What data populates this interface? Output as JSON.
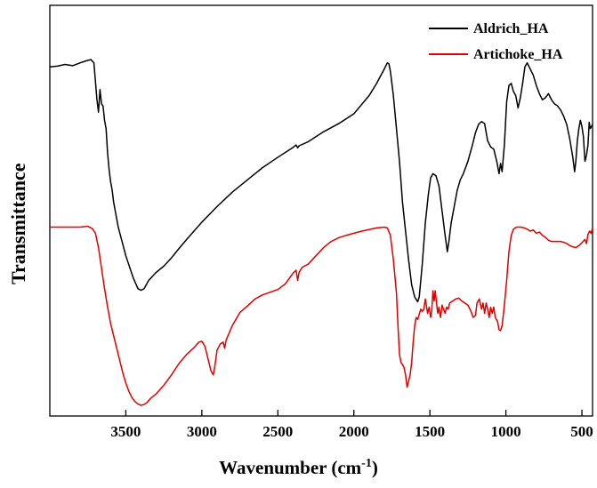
{
  "chart_data": {
    "type": "line",
    "title": "",
    "xlabel": "Wavenumber (cm",
    "xlabel_sup": "-1",
    "xlabel_suffix": ")",
    "ylabel": "Transmittance",
    "xlim": [
      4000,
      430
    ],
    "ylim": [
      0,
      100
    ],
    "x_reversed": true,
    "xticks": [
      {
        "value": 3500,
        "label": "3500"
      },
      {
        "value": 3000,
        "label": "3000"
      },
      {
        "value": 2500,
        "label": "2500"
      },
      {
        "value": 2000,
        "label": "2000"
      },
      {
        "value": 1500,
        "label": "1500"
      },
      {
        "value": 1000,
        "label": "1000"
      },
      {
        "value": 500,
        "label": "500"
      }
    ],
    "grid": false,
    "legend_position": "top-right",
    "series": [
      {
        "name": "Aldrich_HA",
        "color": "#000000",
        "points": [
          [
            4000,
            85.0
          ],
          [
            3950,
            85.2
          ],
          [
            3900,
            85.6
          ],
          [
            3850,
            85.3
          ],
          [
            3800,
            86.0
          ],
          [
            3760,
            86.5
          ],
          [
            3730,
            86.8
          ],
          [
            3710,
            86.0
          ],
          [
            3690,
            77.0
          ],
          [
            3680,
            74.0
          ],
          [
            3670,
            79.5
          ],
          [
            3660,
            76.0
          ],
          [
            3650,
            75.5
          ],
          [
            3640,
            72.0
          ],
          [
            3630,
            70.0
          ],
          [
            3620,
            64.0
          ],
          [
            3610,
            60.0
          ],
          [
            3600,
            57.0
          ],
          [
            3590,
            55.0
          ],
          [
            3580,
            52.0
          ],
          [
            3550,
            46.0
          ],
          [
            3500,
            39.0
          ],
          [
            3450,
            33.5
          ],
          [
            3420,
            31.0
          ],
          [
            3400,
            30.6
          ],
          [
            3380,
            31.0
          ],
          [
            3350,
            33.0
          ],
          [
            3300,
            35.0
          ],
          [
            3250,
            36.5
          ],
          [
            3200,
            38.5
          ],
          [
            3150,
            40.8
          ],
          [
            3100,
            43.0
          ],
          [
            3000,
            47.2
          ],
          [
            2900,
            51.0
          ],
          [
            2800,
            54.5
          ],
          [
            2700,
            57.5
          ],
          [
            2600,
            60.5
          ],
          [
            2500,
            63.0
          ],
          [
            2400,
            65.4
          ],
          [
            2380,
            66.0
          ],
          [
            2370,
            65.3
          ],
          [
            2360,
            65.8
          ],
          [
            2300,
            66.8
          ],
          [
            2200,
            69.2
          ],
          [
            2100,
            71.2
          ],
          [
            2000,
            73.6
          ],
          [
            1900,
            78.0
          ],
          [
            1850,
            81.0
          ],
          [
            1800,
            84.5
          ],
          [
            1780,
            86.0
          ],
          [
            1770,
            85.8
          ],
          [
            1760,
            84.0
          ],
          [
            1740,
            78.0
          ],
          [
            1720,
            70.0
          ],
          [
            1700,
            62.0
          ],
          [
            1680,
            52.0
          ],
          [
            1660,
            45.0
          ],
          [
            1640,
            38.0
          ],
          [
            1620,
            32.0
          ],
          [
            1600,
            29.0
          ],
          [
            1580,
            27.8
          ],
          [
            1570,
            29.0
          ],
          [
            1550,
            37.0
          ],
          [
            1530,
            47.0
          ],
          [
            1510,
            54.0
          ],
          [
            1495,
            58.0
          ],
          [
            1480,
            59.0
          ],
          [
            1460,
            58.5
          ],
          [
            1440,
            56.0
          ],
          [
            1420,
            50.0
          ],
          [
            1400,
            44.0
          ],
          [
            1385,
            40.0
          ],
          [
            1375,
            42.5
          ],
          [
            1360,
            47.0
          ],
          [
            1340,
            51.0
          ],
          [
            1320,
            55.0
          ],
          [
            1300,
            57.5
          ],
          [
            1280,
            59.0
          ],
          [
            1250,
            62.0
          ],
          [
            1220,
            66.0
          ],
          [
            1200,
            69.0
          ],
          [
            1180,
            71.0
          ],
          [
            1160,
            71.7
          ],
          [
            1140,
            71.2
          ],
          [
            1120,
            67.0
          ],
          [
            1100,
            65.5
          ],
          [
            1080,
            65.0
          ],
          [
            1060,
            62.0
          ],
          [
            1045,
            59.0
          ],
          [
            1035,
            61.5
          ],
          [
            1025,
            59.5
          ],
          [
            1010,
            66.0
          ],
          [
            995,
            76.5
          ],
          [
            980,
            80.5
          ],
          [
            965,
            81.0
          ],
          [
            950,
            79.0
          ],
          [
            935,
            78.0
          ],
          [
            920,
            75.0
          ],
          [
            905,
            77.5
          ],
          [
            890,
            81.0
          ],
          [
            875,
            85.0
          ],
          [
            860,
            86.0
          ],
          [
            840,
            84.5
          ],
          [
            820,
            83.0
          ],
          [
            800,
            80.5
          ],
          [
            780,
            78.5
          ],
          [
            760,
            77.0
          ],
          [
            740,
            77.5
          ],
          [
            720,
            78.5
          ],
          [
            700,
            77.0
          ],
          [
            680,
            76.0
          ],
          [
            660,
            75.5
          ],
          [
            640,
            74.5
          ],
          [
            620,
            73.0
          ],
          [
            600,
            71.0
          ],
          [
            580,
            67.5
          ],
          [
            560,
            63.0
          ],
          [
            548,
            59.5
          ],
          [
            540,
            62.0
          ],
          [
            530,
            67.0
          ],
          [
            520,
            70.0
          ],
          [
            510,
            72.0
          ],
          [
            500,
            70.5
          ],
          [
            490,
            68.0
          ],
          [
            480,
            62.0
          ],
          [
            470,
            63.5
          ],
          [
            460,
            66.0
          ],
          [
            452,
            71.5
          ],
          [
            445,
            70.0
          ],
          [
            430,
            71.0
          ]
        ]
      },
      {
        "name": "Artichoke_HA",
        "color": "#e00000",
        "points": [
          [
            4000,
            46.0
          ],
          [
            3900,
            46.0
          ],
          [
            3800,
            46.0
          ],
          [
            3750,
            46.2
          ],
          [
            3720,
            45.6
          ],
          [
            3700,
            44.5
          ],
          [
            3680,
            41.0
          ],
          [
            3660,
            36.0
          ],
          [
            3640,
            31.0
          ],
          [
            3620,
            26.5
          ],
          [
            3600,
            22.5
          ],
          [
            3580,
            19.5
          ],
          [
            3560,
            16.5
          ],
          [
            3540,
            13.5
          ],
          [
            3520,
            10.5
          ],
          [
            3500,
            8.0
          ],
          [
            3480,
            6.0
          ],
          [
            3460,
            4.5
          ],
          [
            3440,
            3.5
          ],
          [
            3420,
            2.9
          ],
          [
            3400,
            2.6
          ],
          [
            3380,
            2.8
          ],
          [
            3360,
            3.3
          ],
          [
            3340,
            4.2
          ],
          [
            3300,
            5.4
          ],
          [
            3250,
            7.5
          ],
          [
            3200,
            10.0
          ],
          [
            3150,
            12.8
          ],
          [
            3100,
            15.0
          ],
          [
            3050,
            16.7
          ],
          [
            3020,
            18.0
          ],
          [
            3000,
            18.2
          ],
          [
            2980,
            17.0
          ],
          [
            2960,
            14.0
          ],
          [
            2940,
            11.0
          ],
          [
            2925,
            10.0
          ],
          [
            2915,
            12.0
          ],
          [
            2900,
            16.0
          ],
          [
            2880,
            17.5
          ],
          [
            2860,
            18.0
          ],
          [
            2850,
            16.5
          ],
          [
            2840,
            18.5
          ],
          [
            2800,
            22.0
          ],
          [
            2750,
            25.2
          ],
          [
            2700,
            26.8
          ],
          [
            2650,
            28.5
          ],
          [
            2600,
            29.5
          ],
          [
            2500,
            30.8
          ],
          [
            2450,
            32.2
          ],
          [
            2400,
            34.8
          ],
          [
            2380,
            35.5
          ],
          [
            2370,
            33.0
          ],
          [
            2360,
            35.0
          ],
          [
            2340,
            36.2
          ],
          [
            2300,
            37.0
          ],
          [
            2250,
            39.0
          ],
          [
            2200,
            41.0
          ],
          [
            2150,
            42.5
          ],
          [
            2100,
            43.4
          ],
          [
            2050,
            44.0
          ],
          [
            2000,
            44.5
          ],
          [
            1950,
            45.0
          ],
          [
            1900,
            45.4
          ],
          [
            1850,
            45.8
          ],
          [
            1800,
            46.0
          ],
          [
            1780,
            45.8
          ],
          [
            1760,
            44.0
          ],
          [
            1740,
            38.0
          ],
          [
            1720,
            30.0
          ],
          [
            1710,
            22.0
          ],
          [
            1700,
            15.0
          ],
          [
            1690,
            13.0
          ],
          [
            1680,
            12.5
          ],
          [
            1670,
            11.8
          ],
          [
            1660,
            10.0
          ],
          [
            1650,
            7.0
          ],
          [
            1640,
            8.5
          ],
          [
            1630,
            10.0
          ],
          [
            1620,
            13.0
          ],
          [
            1610,
            18.0
          ],
          [
            1600,
            22.0
          ],
          [
            1590,
            24.0
          ],
          [
            1580,
            23.5
          ],
          [
            1570,
            24.8
          ],
          [
            1560,
            26.0
          ],
          [
            1550,
            25.5
          ],
          [
            1540,
            26.0
          ],
          [
            1530,
            28.5
          ],
          [
            1515,
            25.0
          ],
          [
            1505,
            26.5
          ],
          [
            1495,
            24.0
          ],
          [
            1488,
            25.5
          ],
          [
            1480,
            30.5
          ],
          [
            1472,
            28.0
          ],
          [
            1465,
            30.5
          ],
          [
            1455,
            27.0
          ],
          [
            1448,
            25.0
          ],
          [
            1440,
            26.5
          ],
          [
            1430,
            24.0
          ],
          [
            1420,
            27.0
          ],
          [
            1410,
            26.0
          ],
          [
            1400,
            25.0
          ],
          [
            1390,
            26.5
          ],
          [
            1380,
            26.0
          ],
          [
            1370,
            27.5
          ],
          [
            1350,
            28.0
          ],
          [
            1330,
            28.5
          ],
          [
            1310,
            28.7
          ],
          [
            1290,
            28.0
          ],
          [
            1270,
            27.5
          ],
          [
            1250,
            27.0
          ],
          [
            1230,
            25.5
          ],
          [
            1215,
            24.0
          ],
          [
            1200,
            24.5
          ],
          [
            1190,
            27.5
          ],
          [
            1175,
            28.5
          ],
          [
            1160,
            26.0
          ],
          [
            1150,
            27.5
          ],
          [
            1140,
            25.0
          ],
          [
            1130,
            27.5
          ],
          [
            1120,
            26.0
          ],
          [
            1110,
            24.0
          ],
          [
            1100,
            26.5
          ],
          [
            1090,
            25.0
          ],
          [
            1080,
            26.5
          ],
          [
            1070,
            24.0
          ],
          [
            1055,
            23.0
          ],
          [
            1045,
            21.0
          ],
          [
            1035,
            20.8
          ],
          [
            1025,
            22.0
          ],
          [
            1010,
            27.0
          ],
          [
            995,
            33.0
          ],
          [
            980,
            40.0
          ],
          [
            965,
            44.0
          ],
          [
            950,
            45.5
          ],
          [
            930,
            46.0
          ],
          [
            900,
            46.0
          ],
          [
            880,
            45.8
          ],
          [
            860,
            45.5
          ],
          [
            840,
            45.0
          ],
          [
            820,
            45.3
          ],
          [
            800,
            44.5
          ],
          [
            780,
            44.8
          ],
          [
            760,
            44.0
          ],
          [
            740,
            43.5
          ],
          [
            720,
            42.8
          ],
          [
            700,
            42.5
          ],
          [
            680,
            42.5
          ],
          [
            660,
            42.5
          ],
          [
            640,
            42.5
          ],
          [
            620,
            42.3
          ],
          [
            600,
            42.0
          ],
          [
            580,
            41.5
          ],
          [
            560,
            41.2
          ],
          [
            540,
            41.0
          ],
          [
            520,
            41.5
          ],
          [
            500,
            42.2
          ],
          [
            480,
            43.0
          ],
          [
            470,
            42.0
          ],
          [
            460,
            44.2
          ],
          [
            450,
            45.0
          ],
          [
            440,
            44.5
          ],
          [
            430,
            45.8
          ]
        ]
      }
    ]
  }
}
